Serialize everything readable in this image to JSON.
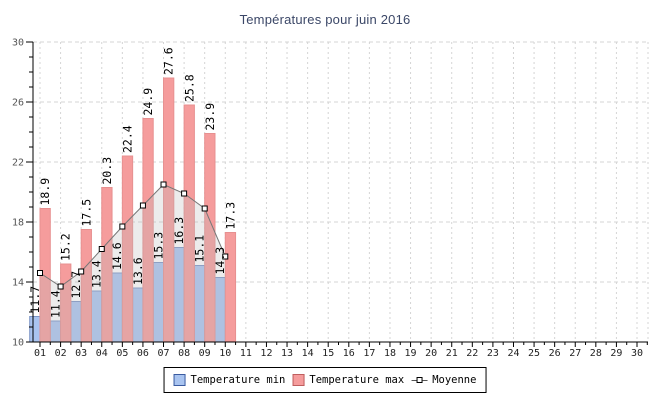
{
  "title": "Températures pour juin 2016",
  "chart_data": {
    "type": "bar",
    "title": "Températures pour juin 2016",
    "categories": [
      "01",
      "02",
      "03",
      "04",
      "05",
      "06",
      "07",
      "08",
      "09",
      "10"
    ],
    "series": [
      {
        "name": "Temperature min",
        "type": "bar",
        "color": "#A9C4F0",
        "border": "#7C95C6",
        "swatch_border": "#3A5BA0",
        "values": [
          11.7,
          11.4,
          12.7,
          13.4,
          14.6,
          13.6,
          15.3,
          16.3,
          15.1,
          14.3
        ]
      },
      {
        "name": "Temperature max",
        "type": "bar",
        "color": "#F59C9C",
        "border": "#E79090",
        "swatch_border": "#BF5E5E",
        "values": [
          18.9,
          15.2,
          17.5,
          20.3,
          22.4,
          24.9,
          27.6,
          25.8,
          23.9,
          17.3
        ]
      },
      {
        "name": "Moyenne",
        "type": "line",
        "color": "#777777",
        "marker": "square",
        "area_fill_color": "#BBBBBB",
        "area_fill_opacity": 0.28,
        "values": [
          14.6,
          13.7,
          14.7,
          16.2,
          17.7,
          19.1,
          20.5,
          19.9,
          18.9,
          15.7
        ]
      }
    ],
    "x_axis": {
      "tick_labels": [
        "01",
        "02",
        "03",
        "04",
        "05",
        "06",
        "07",
        "08",
        "09",
        "10",
        "11",
        "12",
        "13",
        "14",
        "15",
        "16",
        "17",
        "18",
        "19",
        "20",
        "21",
        "22",
        "23",
        "24",
        "25",
        "26",
        "27",
        "28",
        "29",
        "30"
      ],
      "range": [
        1,
        30
      ],
      "minor_ticks": "half-day"
    },
    "y_axis": {
      "tick_labels": [
        "10",
        "14",
        "18",
        "22",
        "26",
        "30"
      ],
      "major_ticks": [
        10,
        14,
        18,
        22,
        26,
        30
      ],
      "range": [
        10,
        30
      ],
      "minor_step": 1
    },
    "grid": true,
    "legend_position": "bottom-center",
    "colors": {
      "grid": "#D4D4D4",
      "axis": "#000000",
      "title": "#3B4767",
      "x_tick_text": "#222222",
      "y_tick_text": "#555555",
      "value_label_text": "#000000"
    }
  }
}
